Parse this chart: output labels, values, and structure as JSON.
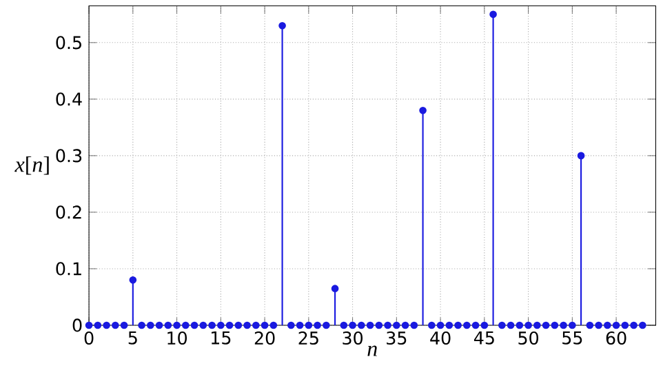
{
  "chart_data": {
    "type": "lollipop",
    "xlabel": "*n*",
    "ylabel": "*x*[*n*]",
    "x": [
      0,
      1,
      2,
      3,
      4,
      5,
      6,
      7,
      8,
      9,
      10,
      11,
      12,
      13,
      14,
      15,
      16,
      17,
      18,
      19,
      20,
      21,
      22,
      23,
      24,
      25,
      26,
      27,
      28,
      29,
      30,
      31,
      32,
      33,
      34,
      35,
      36,
      37,
      38,
      39,
      40,
      41,
      42,
      43,
      44,
      45,
      46,
      47,
      48,
      49,
      50,
      51,
      52,
      53,
      54,
      55,
      56,
      57,
      58,
      59,
      60,
      61,
      62,
      63
    ],
    "values": [
      0,
      0,
      0,
      0,
      0,
      0.08,
      0,
      0,
      0,
      0,
      0,
      0,
      0,
      0,
      0,
      0,
      0,
      0,
      0,
      0,
      0,
      0,
      0.53,
      0,
      0,
      0,
      0,
      0,
      0.065,
      0,
      0,
      0,
      0,
      0,
      0,
      0,
      0,
      0,
      0.38,
      0,
      0,
      0,
      0,
      0,
      0,
      0,
      0.55,
      0,
      0,
      0,
      0,
      0,
      0,
      0,
      0,
      0,
      0.3,
      0,
      0,
      0,
      0,
      0,
      0,
      0
    ],
    "color": "#1a1ae0",
    "marker": "circle",
    "grid": true,
    "xlim": [
      0,
      64.5
    ],
    "xticks": [
      0,
      5,
      10,
      15,
      20,
      25,
      30,
      35,
      40,
      45,
      50,
      55,
      60
    ],
    "ylim": [
      0,
      0.565
    ],
    "yticks": [
      0,
      0.1,
      0.2,
      0.3,
      0.4,
      0.5
    ]
  }
}
